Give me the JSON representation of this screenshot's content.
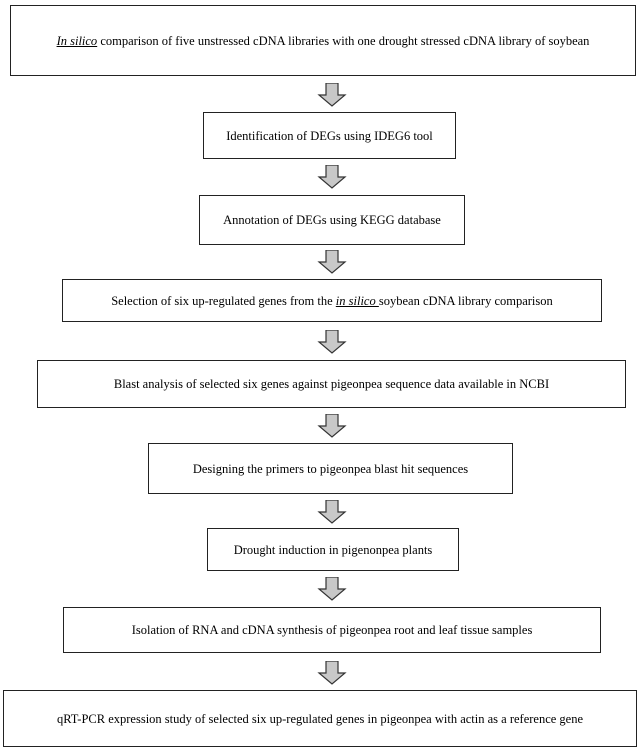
{
  "steps": [
    {
      "pre": "",
      "em": "In silico",
      "post": " comparison of five unstressed cDNA libraries with one drought stressed cDNA library of soybean"
    },
    {
      "pre": "Identification of DEGs using IDEG6 tool",
      "em": "",
      "post": ""
    },
    {
      "pre": "Annotation of DEGs using KEGG database",
      "em": "",
      "post": ""
    },
    {
      "pre": "Selection of six up-regulated genes from the ",
      "em": "in silico ",
      "post": "soybean cDNA library comparison"
    },
    {
      "pre": "Blast analysis of selected six genes against pigeonpea sequence data available in NCBI",
      "em": "",
      "post": ""
    },
    {
      "pre": "Designing the primers to pigeonpea blast hit sequences",
      "em": "",
      "post": ""
    },
    {
      "pre": "Drought induction in pigenonpea plants",
      "em": "",
      "post": ""
    },
    {
      "pre": "Isolation of RNA and cDNA synthesis of pigeonpea root and leaf tissue samples",
      "em": "",
      "post": ""
    },
    {
      "pre": "qRT-PCR expression study of selected six up-regulated genes in pigeonpea with actin as a reference gene",
      "em": "",
      "post": ""
    }
  ]
}
